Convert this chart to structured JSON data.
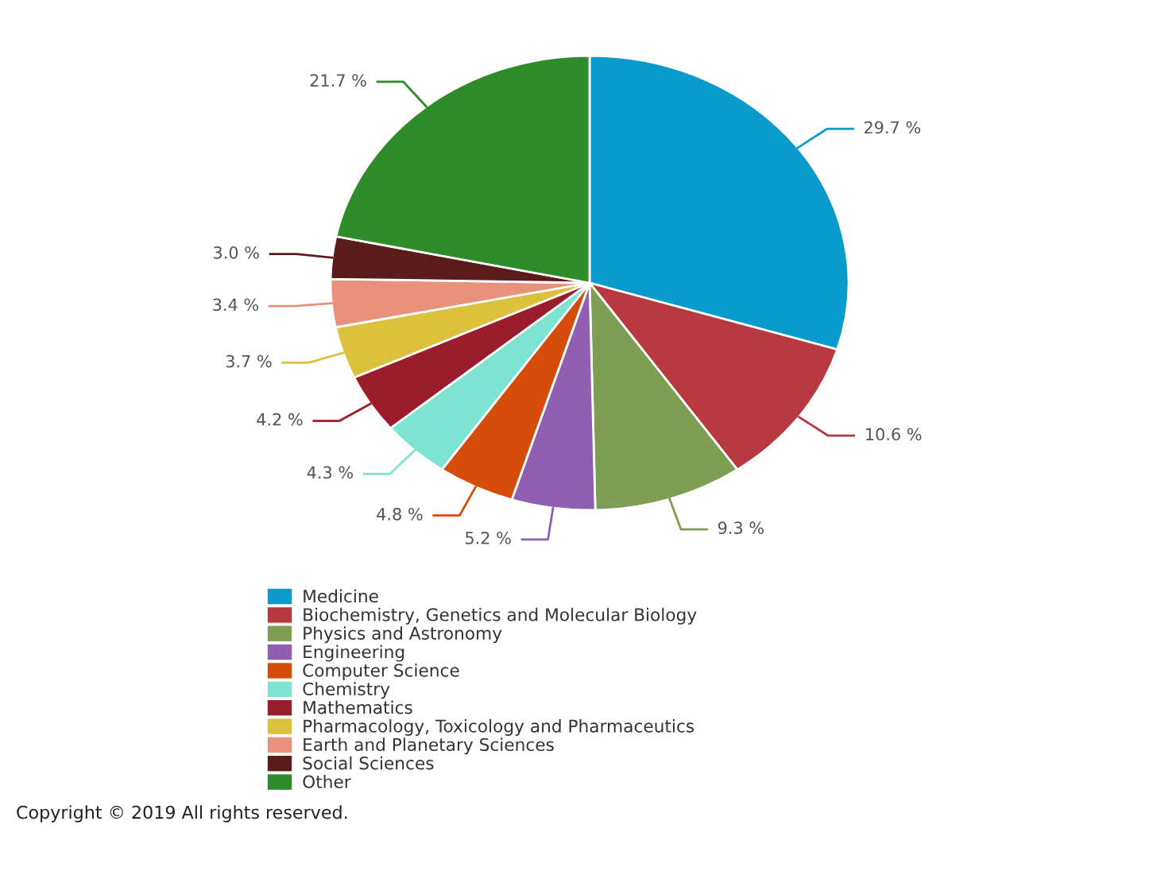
{
  "chart_data": {
    "type": "pie",
    "categories": [
      "Medicine",
      "Biochemistry, Genetics and Molecular Biology",
      "Physics and Astronomy",
      "Engineering",
      "Computer Science",
      "Chemistry",
      "Mathematics",
      "Pharmacology, Toxicology and Pharmaceutics",
      "Earth and Planetary Sciences",
      "Social Sciences",
      "Other"
    ],
    "values": [
      29.7,
      10.6,
      9.3,
      5.2,
      4.8,
      4.3,
      4.2,
      3.7,
      3.4,
      3.0,
      21.7
    ],
    "colors": [
      "#0a9bcd",
      "#b8393f",
      "#7e9e54",
      "#915fb1",
      "#d64c0a",
      "#7fe3d2",
      "#9b1d2b",
      "#dcc13c",
      "#e8927b",
      "#5a1b1b",
      "#2f8c2a"
    ],
    "value_labels": [
      "29.7 %",
      "10.6 %",
      "9.3 %",
      "5.2 %",
      "4.8 %",
      "4.3 %",
      "4.2 %",
      "3.7 %",
      "3.4 %",
      "3.0 %",
      "21.7 %"
    ],
    "legend": "bottom",
    "annotations": [
      "Copyright © 2019 All rights reserved."
    ]
  }
}
